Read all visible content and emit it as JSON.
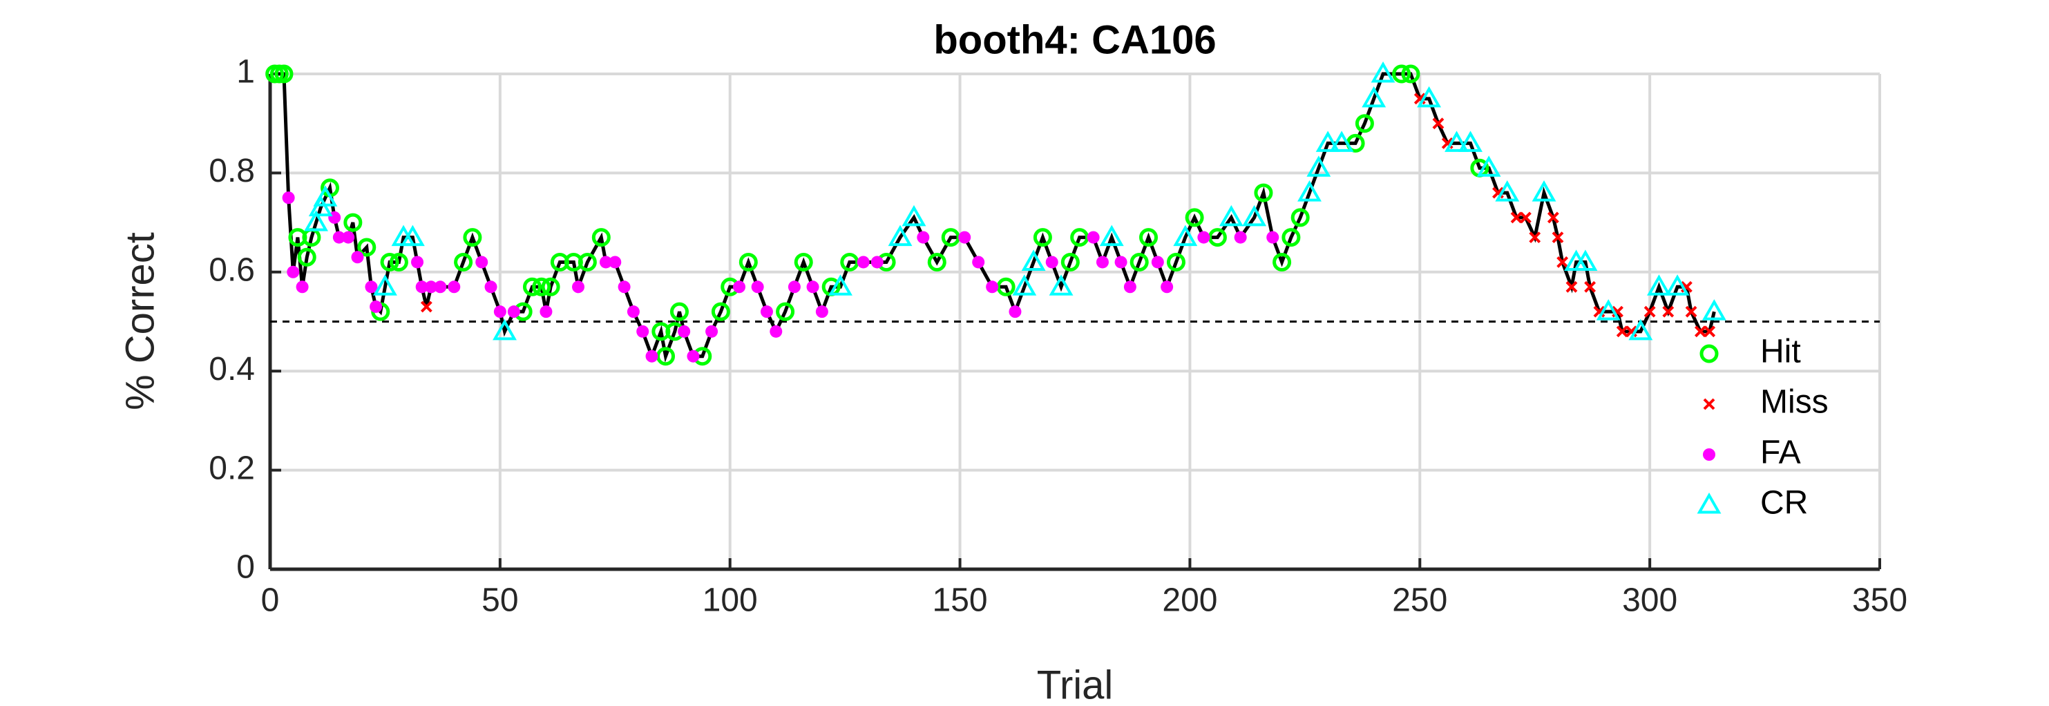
{
  "chart_data": {
    "type": "scatter",
    "title": "booth4: CA106",
    "xlabel": "Trial",
    "ylabel": "% Correct",
    "xlim": [
      0,
      350
    ],
    "ylim": [
      0,
      1
    ],
    "xticks": [
      0,
      50,
      100,
      150,
      200,
      250,
      300,
      350
    ],
    "yticks": [
      0,
      0.2,
      0.4,
      0.6,
      0.8,
      1
    ],
    "grid": true,
    "legend": "east",
    "reference_line": 0.5,
    "line": {
      "color": "#000000",
      "x": [
        1,
        2,
        3,
        4,
        5,
        6,
        7,
        8,
        9,
        10,
        11,
        12,
        13,
        14,
        15,
        17,
        18,
        19,
        21,
        22,
        23,
        24,
        25,
        26,
        28,
        29,
        31,
        32,
        33,
        34,
        35,
        37,
        40,
        42,
        44,
        46,
        48,
        50,
        51,
        53,
        55,
        57,
        59,
        60,
        61,
        63,
        66,
        67,
        69,
        72,
        73,
        75,
        77,
        79,
        81,
        83,
        85,
        86,
        88,
        89,
        90,
        92,
        94,
        96,
        98,
        100,
        102,
        104,
        106,
        108,
        110,
        112,
        114,
        116,
        118,
        120,
        122,
        124,
        126,
        129,
        132,
        134,
        137,
        140,
        142,
        145,
        148,
        151,
        154,
        157,
        160,
        162,
        164,
        166,
        168,
        170,
        172,
        174,
        176,
        179,
        181,
        183,
        185,
        187,
        189,
        191,
        193,
        195,
        197,
        199,
        201,
        203,
        206,
        209,
        211,
        214,
        216,
        218,
        220,
        222,
        224,
        226,
        228,
        230,
        233,
        236,
        238,
        240,
        242,
        246,
        248,
        250,
        252,
        254,
        256,
        258,
        261,
        263,
        265,
        267,
        269,
        271,
        273,
        275,
        277,
        279,
        280,
        281,
        283,
        284,
        286,
        287,
        289,
        291,
        293,
        294,
        296,
        298,
        300,
        302,
        304,
        306,
        308,
        309,
        311,
        313,
        314
      ],
      "values": [
        1,
        1,
        1,
        0.75,
        0.6,
        0.67,
        0.57,
        0.63,
        0.67,
        0.7,
        0.73,
        0.75,
        0.77,
        0.71,
        0.67,
        0.67,
        0.7,
        0.63,
        0.65,
        0.57,
        0.53,
        0.52,
        0.57,
        0.62,
        0.62,
        0.67,
        0.67,
        0.62,
        0.57,
        0.53,
        0.57,
        0.57,
        0.57,
        0.62,
        0.67,
        0.62,
        0.57,
        0.52,
        0.48,
        0.52,
        0.52,
        0.57,
        0.57,
        0.52,
        0.57,
        0.62,
        0.62,
        0.57,
        0.62,
        0.67,
        0.62,
        0.62,
        0.57,
        0.52,
        0.48,
        0.43,
        0.48,
        0.43,
        0.48,
        0.52,
        0.48,
        0.43,
        0.43,
        0.48,
        0.52,
        0.57,
        0.57,
        0.62,
        0.57,
        0.52,
        0.48,
        0.52,
        0.57,
        0.62,
        0.57,
        0.52,
        0.57,
        0.57,
        0.62,
        0.62,
        0.62,
        0.62,
        0.67,
        0.71,
        0.67,
        0.62,
        0.67,
        0.67,
        0.62,
        0.57,
        0.57,
        0.52,
        0.57,
        0.62,
        0.67,
        0.62,
        0.57,
        0.62,
        0.67,
        0.67,
        0.62,
        0.67,
        0.62,
        0.57,
        0.62,
        0.67,
        0.62,
        0.57,
        0.62,
        0.67,
        0.71,
        0.67,
        0.67,
        0.71,
        0.67,
        0.71,
        0.76,
        0.67,
        0.62,
        0.67,
        0.71,
        0.76,
        0.81,
        0.86,
        0.86,
        0.86,
        0.9,
        0.95,
        1,
        1,
        1,
        0.95,
        0.95,
        0.9,
        0.86,
        0.86,
        0.86,
        0.81,
        0.81,
        0.76,
        0.76,
        0.71,
        0.71,
        0.67,
        0.76,
        0.71,
        0.67,
        0.62,
        0.57,
        0.62,
        0.62,
        0.57,
        0.52,
        0.52,
        0.52,
        0.48,
        0.48,
        0.48,
        0.52,
        0.57,
        0.52,
        0.57,
        0.57,
        0.52,
        0.48,
        0.48,
        0.52
      ]
    },
    "series": [
      {
        "name": "Hit",
        "color": "#00ff00",
        "marker": "circle",
        "x": [
          1,
          2,
          3,
          6,
          8,
          9,
          13,
          18,
          21,
          24,
          26,
          28,
          42,
          44,
          55,
          57,
          59,
          61,
          63,
          66,
          69,
          72,
          85,
          86,
          88,
          89,
          94,
          98,
          100,
          104,
          112,
          116,
          122,
          126,
          134,
          145,
          148,
          160,
          168,
          174,
          176,
          189,
          191,
          197,
          201,
          206,
          216,
          220,
          222,
          224,
          236,
          238,
          246,
          248,
          263
        ],
        "values": [
          1,
          1,
          1,
          0.67,
          0.63,
          0.67,
          0.77,
          0.7,
          0.65,
          0.52,
          0.62,
          0.62,
          0.62,
          0.67,
          0.52,
          0.57,
          0.57,
          0.57,
          0.62,
          0.62,
          0.62,
          0.67,
          0.48,
          0.43,
          0.48,
          0.52,
          0.43,
          0.52,
          0.57,
          0.62,
          0.52,
          0.62,
          0.57,
          0.62,
          0.62,
          0.62,
          0.67,
          0.57,
          0.67,
          0.62,
          0.67,
          0.62,
          0.67,
          0.62,
          0.71,
          0.67,
          0.76,
          0.62,
          0.67,
          0.71,
          0.86,
          0.9,
          1,
          1,
          0.81
        ]
      },
      {
        "name": "Miss",
        "color": "#ff0000",
        "marker": "x",
        "x": [
          34,
          250,
          254,
          256,
          267,
          271,
          273,
          275,
          279,
          280,
          281,
          283,
          287,
          289,
          293,
          294,
          296,
          300,
          304,
          308,
          309,
          311,
          313
        ],
        "values": [
          0.53,
          0.95,
          0.9,
          0.86,
          0.76,
          0.71,
          0.71,
          0.67,
          0.71,
          0.67,
          0.62,
          0.57,
          0.57,
          0.52,
          0.52,
          0.48,
          0.48,
          0.52,
          0.52,
          0.57,
          0.52,
          0.48,
          0.48
        ]
      },
      {
        "name": "FA",
        "color": "#ff00ff",
        "marker": "dot",
        "x": [
          4,
          5,
          7,
          14,
          15,
          17,
          19,
          22,
          23,
          32,
          33,
          35,
          37,
          40,
          46,
          48,
          50,
          53,
          60,
          67,
          73,
          75,
          77,
          79,
          81,
          83,
          90,
          92,
          96,
          102,
          106,
          108,
          110,
          114,
          118,
          120,
          129,
          132,
          142,
          151,
          154,
          157,
          162,
          170,
          179,
          181,
          185,
          187,
          193,
          195,
          203,
          211,
          218
        ],
        "values": [
          0.75,
          0.6,
          0.57,
          0.71,
          0.67,
          0.67,
          0.63,
          0.57,
          0.53,
          0.62,
          0.57,
          0.57,
          0.57,
          0.57,
          0.62,
          0.57,
          0.52,
          0.52,
          0.52,
          0.57,
          0.62,
          0.62,
          0.57,
          0.52,
          0.48,
          0.43,
          0.48,
          0.43,
          0.48,
          0.57,
          0.57,
          0.52,
          0.48,
          0.57,
          0.57,
          0.52,
          0.62,
          0.62,
          0.67,
          0.67,
          0.62,
          0.57,
          0.52,
          0.62,
          0.67,
          0.62,
          0.62,
          0.57,
          0.62,
          0.57,
          0.67,
          0.67,
          0.67
        ]
      },
      {
        "name": "CR",
        "color": "#00ffff",
        "marker": "triangle",
        "x": [
          10,
          11,
          12,
          25,
          29,
          31,
          51,
          124,
          137,
          140,
          164,
          166,
          172,
          183,
          199,
          209,
          214,
          226,
          228,
          230,
          233,
          240,
          242,
          252,
          258,
          261,
          265,
          269,
          277,
          284,
          286,
          291,
          298,
          302,
          306,
          314
        ],
        "values": [
          0.7,
          0.73,
          0.75,
          0.57,
          0.67,
          0.67,
          0.48,
          0.57,
          0.67,
          0.71,
          0.57,
          0.62,
          0.57,
          0.67,
          0.67,
          0.71,
          0.71,
          0.76,
          0.81,
          0.86,
          0.86,
          0.95,
          1,
          0.95,
          0.86,
          0.86,
          0.81,
          0.76,
          0.76,
          0.62,
          0.62,
          0.52,
          0.48,
          0.57,
          0.57,
          0.52
        ]
      }
    ]
  }
}
